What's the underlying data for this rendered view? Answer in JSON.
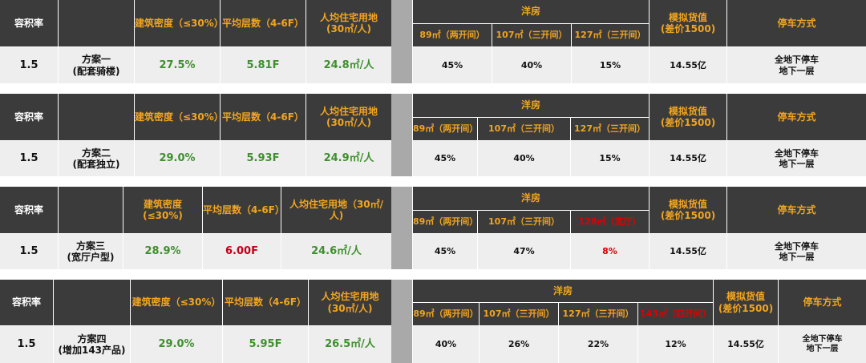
{
  "headers": {
    "far": "容积率",
    "density": "建筑密度（≤30%）",
    "density_wrapped": [
      "建筑密度",
      "(≤30%)"
    ],
    "floors": "平均层数（4-6F）",
    "land_lines": [
      "人均住宅用地",
      "(30㎡/人)"
    ],
    "land_lines_b3": [
      "人均住宅用地（30㎡/",
      "人)"
    ],
    "yangfang": "洋房",
    "value_lines": [
      "模拟货值",
      "(差价1500)"
    ],
    "parking": "停车方式"
  },
  "units": {
    "u89": "89㎡（两开间）",
    "u107": "107㎡（三开间）",
    "u127": "127㎡（三开间）",
    "u128": "128㎡（宽厅）",
    "u143": "143㎡（四开间）"
  },
  "schemes": [
    {
      "far": "1.5",
      "name_lines": [
        "方案一",
        "(配套骑楼)"
      ],
      "density": "27.5%",
      "floors": "5.81F",
      "land": "24.8㎡/人",
      "shares": [
        "45%",
        "40%",
        "15%"
      ],
      "value": "14.55亿",
      "parking_lines": [
        "全地下停车",
        "地下一层"
      ]
    },
    {
      "far": "1.5",
      "name_lines": [
        "方案二",
        "(配套独立)"
      ],
      "density": "29.0%",
      "floors": "5.93F",
      "land": "24.9㎡/人",
      "shares": [
        "45%",
        "40%",
        "15%"
      ],
      "value": "14.55亿",
      "parking_lines": [
        "全地下停车",
        "地下一层"
      ]
    },
    {
      "far": "1.5",
      "name_lines": [
        "方案三",
        "(宽厅户型)"
      ],
      "density": "28.9%",
      "floors": "6.00F",
      "land": "24.6㎡/人",
      "shares": [
        "45%",
        "47%",
        "8%"
      ],
      "value": "14.55亿",
      "parking_lines": [
        "全地下停车",
        "地下一层"
      ]
    },
    {
      "far": "1.5",
      "name_lines": [
        "方案四",
        "(增加143产品)"
      ],
      "density": "29.0%",
      "floors": "5.95F",
      "land": "26.5㎡/人",
      "shares": [
        "40%",
        "26%",
        "22%",
        "12%"
      ],
      "value": "14.55亿",
      "parking_lines": [
        "全地下停车",
        "地下一层"
      ]
    }
  ],
  "colors": {
    "header_bg": "#3b3b3b",
    "header_text": "#f2a51f",
    "body_bg": "#eeeeee",
    "positive_green": "#3f8f2e",
    "highlight_red": "#c0001a",
    "separator_gray": "#a9a9a9"
  }
}
